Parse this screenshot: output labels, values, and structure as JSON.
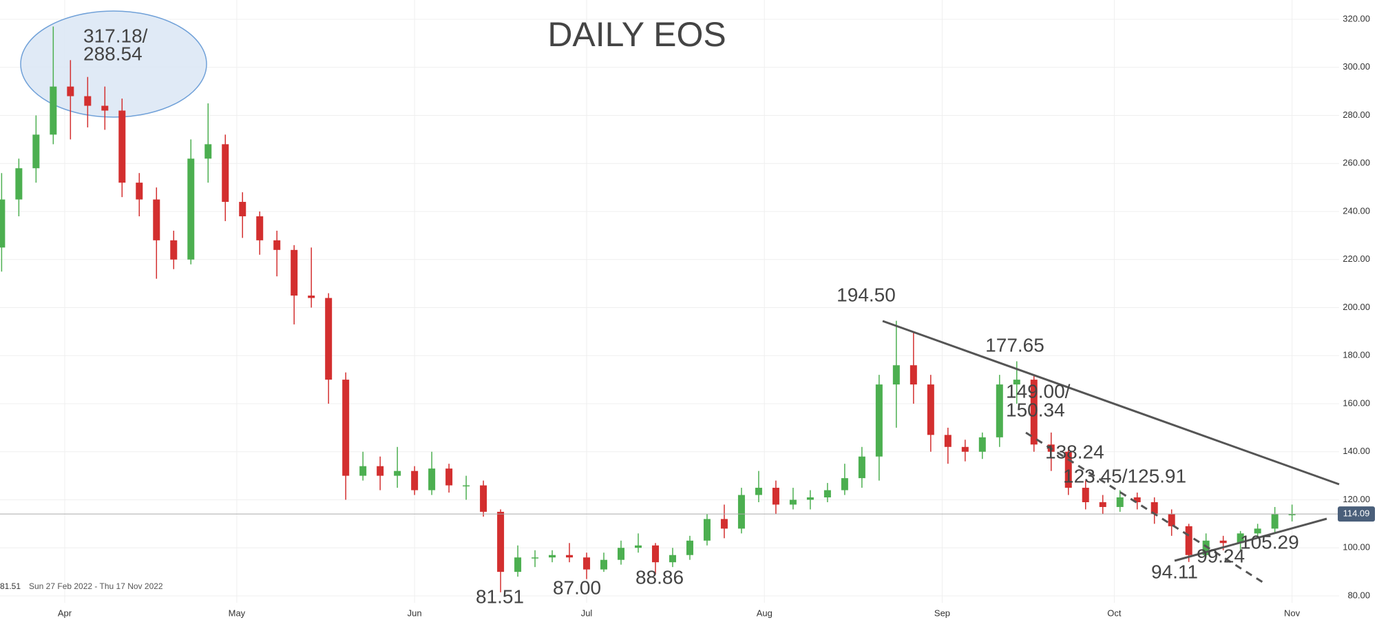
{
  "chart_data": {
    "type": "candlestick",
    "title": "DAILY EOS",
    "x": [
      "2022-03-21",
      "2022-03-24",
      "2022-03-27",
      "2022-03-30",
      "2022-04-02",
      "2022-04-05",
      "2022-04-08",
      "2022-04-11",
      "2022-04-14",
      "2022-04-17",
      "2022-04-20",
      "2022-04-23",
      "2022-04-26",
      "2022-04-29",
      "2022-05-02",
      "2022-05-05",
      "2022-05-08",
      "2022-05-11",
      "2022-05-14",
      "2022-05-17",
      "2022-05-20",
      "2022-05-23",
      "2022-05-26",
      "2022-05-29",
      "2022-06-01",
      "2022-06-04",
      "2022-06-07",
      "2022-06-10",
      "2022-06-13",
      "2022-06-16",
      "2022-06-19",
      "2022-06-22",
      "2022-06-25",
      "2022-06-28",
      "2022-07-01",
      "2022-07-04",
      "2022-07-07",
      "2022-07-10",
      "2022-07-13",
      "2022-07-16",
      "2022-07-19",
      "2022-07-22",
      "2022-07-25",
      "2022-07-28",
      "2022-07-31",
      "2022-08-03",
      "2022-08-06",
      "2022-08-09",
      "2022-08-12",
      "2022-08-15",
      "2022-08-18",
      "2022-08-21",
      "2022-08-24",
      "2022-08-27",
      "2022-08-30",
      "2022-09-02",
      "2022-09-05",
      "2022-09-08",
      "2022-09-11",
      "2022-09-14",
      "2022-09-17",
      "2022-09-20",
      "2022-09-23",
      "2022-09-26",
      "2022-09-29",
      "2022-10-02",
      "2022-10-05",
      "2022-10-08",
      "2022-10-11",
      "2022-10-14",
      "2022-10-17",
      "2022-10-20",
      "2022-10-23",
      "2022-10-26",
      "2022-10-29",
      "2022-11-01"
    ],
    "open": [
      225,
      245,
      258,
      272,
      292,
      288,
      284,
      282,
      252,
      245,
      228,
      220,
      262,
      268,
      244,
      238,
      228,
      224,
      205,
      204,
      170,
      130,
      134,
      130,
      132,
      124,
      133,
      126,
      126,
      115,
      90,
      96,
      96,
      97,
      96,
      91,
      95,
      100,
      101,
      94,
      97,
      103,
      112,
      108,
      122,
      125,
      118,
      120,
      121,
      124,
      129,
      138,
      168,
      176,
      168,
      147,
      142,
      140,
      146,
      168,
      170,
      143,
      140,
      125,
      119,
      117,
      121,
      119,
      114,
      109,
      97,
      103,
      102,
      106,
      108,
      114
    ],
    "high": [
      256,
      262,
      280,
      317,
      303,
      296,
      292,
      287,
      256,
      250,
      232,
      270,
      285,
      272,
      248,
      240,
      232,
      226,
      225,
      206,
      173,
      140,
      138,
      142,
      134,
      140,
      135,
      130,
      128,
      116,
      101,
      99,
      99,
      102,
      98,
      98,
      103,
      106,
      102,
      100,
      105,
      114,
      118,
      125,
      132,
      128,
      125,
      124,
      127,
      135,
      142,
      172,
      194.5,
      190,
      172,
      150,
      145,
      148,
      172,
      177.65,
      172,
      148,
      142,
      128,
      122,
      124,
      123,
      121,
      116,
      110,
      106,
      105,
      107,
      110,
      117,
      118
    ],
    "low": [
      215,
      238,
      252,
      268,
      270,
      275,
      274,
      246,
      238,
      212,
      216,
      218,
      252,
      236,
      229,
      222,
      213,
      193,
      200,
      160,
      120,
      128,
      124,
      125,
      122,
      122,
      123,
      120,
      113,
      81.51,
      88,
      92,
      94,
      94,
      87,
      90,
      93,
      98,
      88.86,
      92,
      95,
      101,
      104,
      106,
      119,
      114,
      116,
      116,
      119,
      122,
      125,
      128,
      150,
      160,
      140,
      135,
      136,
      137,
      142,
      160,
      140,
      132,
      122,
      116,
      114,
      115,
      116,
      110,
      105,
      94.11,
      96,
      99,
      99,
      104,
      106,
      111
    ],
    "close": [
      245,
      258,
      272,
      292,
      288,
      284,
      282,
      252,
      245,
      228,
      220,
      262,
      268,
      244,
      238,
      228,
      224,
      205,
      204,
      170,
      130,
      134,
      130,
      132,
      124,
      133,
      126,
      126,
      115,
      90,
      96,
      96,
      97,
      96,
      91,
      95,
      100,
      101,
      94,
      97,
      103,
      112,
      108,
      122,
      125,
      118,
      120,
      121,
      124,
      129,
      138,
      168,
      176,
      168,
      147,
      142,
      140,
      146,
      168,
      170,
      143,
      140,
      125,
      119,
      117,
      121,
      119,
      114,
      109,
      97,
      103,
      102,
      106,
      108,
      114,
      114
    ],
    "up_color": "#4caf50",
    "down_color": "#d32f2f",
    "ylim": [
      80,
      320
    ],
    "yticks": [
      {
        "value": 80,
        "label": "80.00"
      },
      {
        "value": 100,
        "label": "100.00"
      },
      {
        "value": 120,
        "label": "120.00"
      },
      {
        "value": 140,
        "label": "140.00"
      },
      {
        "value": 160,
        "label": "160.00"
      },
      {
        "value": 180,
        "label": "180.00"
      },
      {
        "value": 200,
        "label": "200.00"
      },
      {
        "value": 220,
        "label": "220.00"
      },
      {
        "value": 240,
        "label": "240.00"
      },
      {
        "value": 260,
        "label": "260.00"
      },
      {
        "value": 280,
        "label": "280.00"
      },
      {
        "value": 300,
        "label": "300.00"
      },
      {
        "value": 320,
        "label": "320.00"
      }
    ],
    "xticks": [
      {
        "value": "2022-04-01",
        "label": "Apr"
      },
      {
        "value": "2022-05-01",
        "label": "May"
      },
      {
        "value": "2022-06-01",
        "label": "Jun"
      },
      {
        "value": "2022-07-01",
        "label": "Jul"
      },
      {
        "value": "2022-08-01",
        "label": "Aug"
      },
      {
        "value": "2022-09-01",
        "label": "Sep"
      },
      {
        "value": "2022-10-01",
        "label": "Oct"
      },
      {
        "value": "2022-11-01",
        "label": "Nov"
      }
    ],
    "grid": true,
    "last_price": 114.09,
    "annotations": [
      "317.18/",
      "288.54",
      "194.50",
      "177.65",
      "149.00/",
      "150.34",
      "138.24",
      "123.45/125.91",
      "105.29",
      "99.24",
      "94.11",
      "81.51",
      "87.00",
      "88.86"
    ],
    "cursor_value": 81.51,
    "date_range": "Sun 27 Feb 2022 - Thu 17 Nov 2022"
  }
}
